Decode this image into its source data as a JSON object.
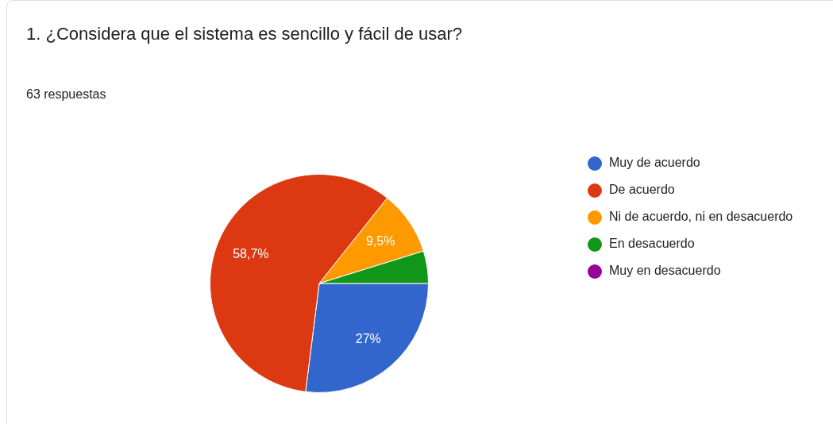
{
  "chart_data": {
    "type": "pie",
    "title": "1. ¿Considera que el sistema es sencillo y fácil de usar?",
    "subtitle": "63 respuestas",
    "categories": [
      "Muy de acuerdo",
      "De acuerdo",
      "Ni de acuerdo, ni en desacuerdo",
      "En desacuerdo",
      "Muy en desacuerdo"
    ],
    "values": [
      27,
      58.7,
      9.5,
      4.8,
      0
    ],
    "colors": [
      "#3366cc",
      "#dc3912",
      "#ff9900",
      "#109618",
      "#990099"
    ],
    "value_labels": [
      "27%",
      "58,7%",
      "9,5%",
      null,
      null
    ],
    "legend": "right"
  }
}
